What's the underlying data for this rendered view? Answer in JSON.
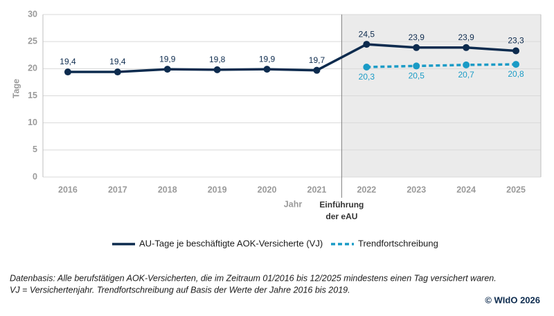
{
  "chart_data": {
    "type": "line",
    "x_label": "Jahr",
    "y_label": "Tage",
    "categories": [
      "2016",
      "2017",
      "2018",
      "2019",
      "2020",
      "2021",
      "2022",
      "2023",
      "2024",
      "2025"
    ],
    "series": [
      {
        "name": "AU-Tage je beschäftigte AOK-Versicherte (VJ)",
        "color": "#0d2b4e",
        "dash": false,
        "values": [
          19.4,
          19.4,
          19.9,
          19.8,
          19.9,
          19.7,
          24.5,
          23.9,
          23.9,
          23.3
        ],
        "value_labels": [
          "19,4",
          "19,4",
          "19,9",
          "19,8",
          "19,9",
          "19,7",
          "24,5",
          "23,9",
          "23,9",
          "23,3"
        ]
      },
      {
        "name": "Trendfortschreibung",
        "color": "#1a9bc6",
        "dash": true,
        "values": [
          null,
          null,
          null,
          null,
          null,
          null,
          20.3,
          20.5,
          20.7,
          20.8
        ],
        "value_labels": [
          null,
          null,
          null,
          null,
          null,
          null,
          "20,3",
          "20,5",
          "20,7",
          "20,8"
        ]
      }
    ],
    "ylim": [
      0,
      30
    ],
    "yticks": [
      0,
      5,
      10,
      15,
      20,
      25,
      30
    ],
    "grid": true,
    "annotation": {
      "category_index": 6,
      "lines": [
        "Einführung",
        "der eAU"
      ],
      "shade_color": "#ebebeb"
    },
    "footnote": [
      "Datenbasis: Alle berufstätigen AOK-Versicherten, die im Zeitraum 01/2016 bis 12/2025 mindestens einen Tag versichert waren.",
      "VJ = Versichertenjahr. Trendfortschreibung auf Basis der Werte der Jahre 2016 bis 2019."
    ],
    "source": "© WIdO 2026"
  }
}
